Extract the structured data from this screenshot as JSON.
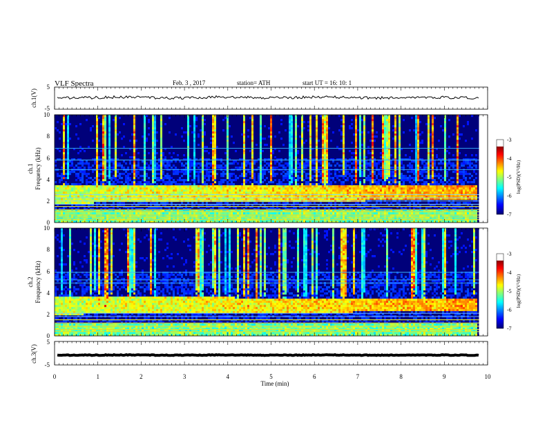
{
  "header": {
    "title": "VLF  Spectra",
    "date": "Feb. 3  , 2017",
    "station": "station= ATH",
    "start_ut": "start  UT  =   16: 10: 1"
  },
  "chart_data": [
    {
      "type": "line",
      "name": "ch1-voltage",
      "ylabel": "ch.1(V)",
      "ylim": [
        -5,
        5
      ],
      "yticks": [
        "5",
        "-5"
      ],
      "x_range": [
        0,
        9.8
      ],
      "level": 0.3,
      "noise": 0.6,
      "line_color": "#000000"
    },
    {
      "type": "heatmap",
      "name": "ch1-spectrogram",
      "ylabel": "ch.1\nFrequency (kHz)",
      "ylim": [
        0,
        10
      ],
      "yticks": [
        "0",
        "2",
        "4",
        "6",
        "8",
        "10"
      ],
      "x_range": [
        0,
        9.8
      ],
      "colorbar": {
        "label": "log(PSD)(V²/Hz)",
        "range": [
          -7,
          -3
        ],
        "ticks": [
          "-3",
          "-4",
          "-5",
          "-6",
          "-7"
        ]
      },
      "features": {
        "noise_band_khz": [
          1.8,
          3.5
        ],
        "spectral_lines_khz": [
          0.3,
          0.5,
          0.7,
          1.0,
          1.2,
          1.5,
          1.7,
          2.0,
          2.3,
          2.6,
          4.9,
          5.8,
          6.9
        ]
      },
      "seed": 7
    },
    {
      "type": "heatmap",
      "name": "ch2-spectrogram",
      "ylabel": "ch.2\nFrequency (kHz)",
      "ylim": [
        0,
        10
      ],
      "yticks": [
        "0",
        "2",
        "4",
        "6",
        "8",
        "10"
      ],
      "x_range": [
        0,
        9.8
      ],
      "colorbar": {
        "label": "log(PSD)(V²/Hz)",
        "range": [
          -7,
          -3
        ],
        "ticks": [
          "-3",
          "-4",
          "-5",
          "-6",
          "-7"
        ]
      },
      "features": {
        "noise_band_khz": [
          2.0,
          3.6
        ],
        "spectral_lines_khz": [
          0.4,
          0.6,
          0.9,
          1.2,
          1.5,
          1.8,
          2.1,
          4.9,
          5.2,
          5.9
        ]
      },
      "seed": 13
    },
    {
      "type": "line",
      "name": "ch3-voltage",
      "ylabel": "ch.3(V)",
      "ylim": [
        -5,
        5
      ],
      "yticks": [
        "5",
        "-5"
      ],
      "x_range": [
        0,
        9.8
      ],
      "level": -0.8,
      "noise": 0.15,
      "line_width": 4,
      "line_color": "#000000"
    }
  ],
  "xaxis": {
    "label": "Time  (min)",
    "range": [
      0,
      10
    ],
    "ticks": [
      "0",
      "1",
      "2",
      "3",
      "4",
      "5",
      "6",
      "7",
      "8",
      "9",
      "10"
    ]
  }
}
